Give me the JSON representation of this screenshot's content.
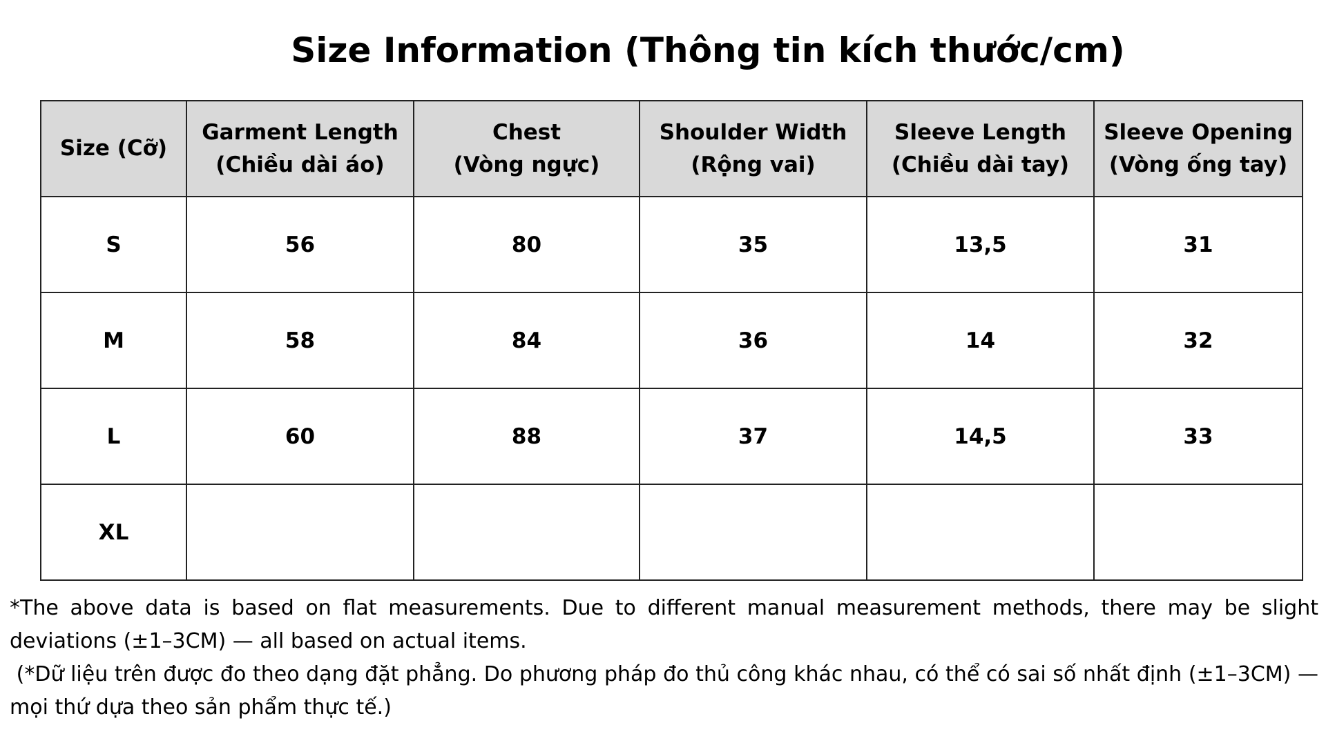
{
  "title": "Size Information (Thông tin kích thước/cm)",
  "table": {
    "headers": [
      {
        "en": "Size (Cỡ)",
        "vi": ""
      },
      {
        "en": "Garment Length",
        "vi": "(Chiều dài áo)"
      },
      {
        "en": "Chest",
        "vi": "(Vòng ngực)"
      },
      {
        "en": "Shoulder Width",
        "vi": "(Rộng vai)"
      },
      {
        "en": "Sleeve Length",
        "vi": "(Chiều dài tay)"
      },
      {
        "en": "Sleeve Opening",
        "vi": "(Vòng ống tay)"
      }
    ],
    "rows": [
      [
        "S",
        "56",
        "80",
        "35",
        "13,5",
        "31"
      ],
      [
        "M",
        "58",
        "84",
        "36",
        "14",
        "32"
      ],
      [
        "L",
        "60",
        "88",
        "37",
        "14,5",
        "33"
      ],
      [
        "XL",
        "",
        "",
        "",
        "",
        ""
      ]
    ]
  },
  "note": {
    "en": "*The above data is based on flat measurements. Due to different manual measurement methods, there may be slight deviations (±1–3CM) — all based on actual items.",
    "vi": " (*Dữ liệu trên được đo theo dạng đặt phẳng. Do phương pháp đo thủ công khác nhau, có thể có sai số nhất định (±1–3CM) — mọi thứ dựa theo sản phẩm thực tế.)"
  }
}
